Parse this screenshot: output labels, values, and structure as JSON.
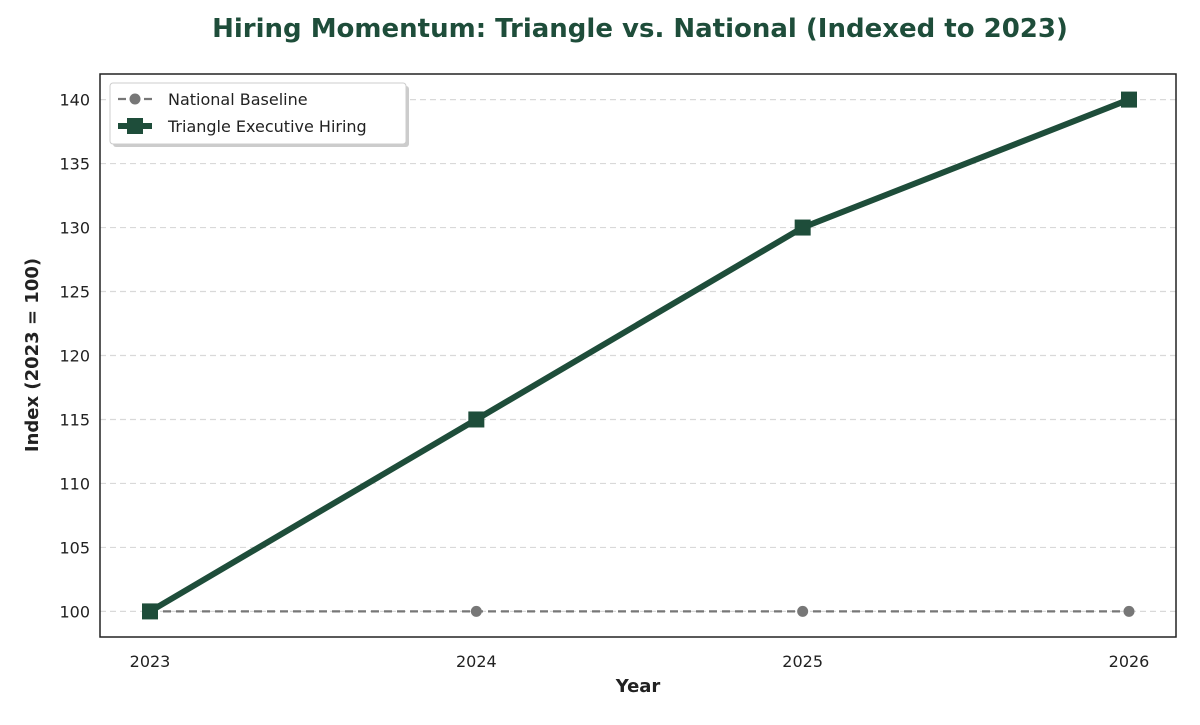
{
  "chart_data": {
    "type": "line",
    "title": "Hiring Momentum: Triangle vs. National (Indexed to 2023)",
    "xlabel": "Year",
    "ylabel": "Index (2023 = 100)",
    "x": [
      2023,
      2024,
      2025,
      2026
    ],
    "x_tick_labels": [
      "2023",
      "2024",
      "2025",
      "2026"
    ],
    "ylim": [
      98,
      142
    ],
    "y_ticks": [
      100,
      105,
      110,
      115,
      120,
      125,
      130,
      135,
      140
    ],
    "grid": "horizontal-dashed",
    "legend_position": "top-left",
    "series": [
      {
        "name": "National Baseline",
        "values": [
          100,
          100,
          100,
          100
        ],
        "color": "#777777",
        "style": "dashed",
        "marker": "circle"
      },
      {
        "name": "Triangle Executive Hiring",
        "values": [
          100,
          115,
          130,
          140
        ],
        "color": "#1e4d3a",
        "style": "solid",
        "marker": "square"
      }
    ]
  }
}
